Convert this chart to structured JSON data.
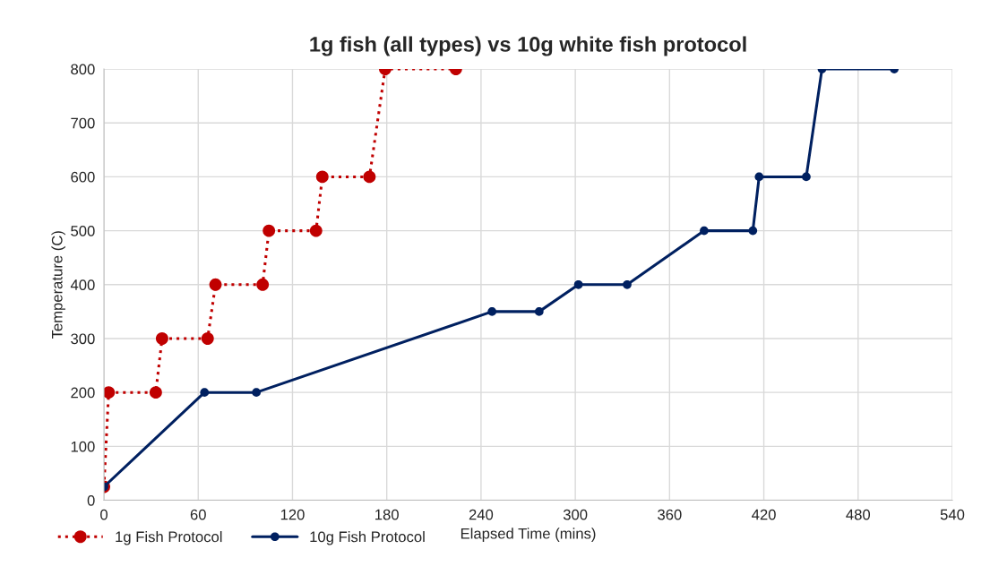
{
  "chart_data": {
    "type": "line",
    "title": "1g fish (all types) vs 10g white fish protocol",
    "xlabel": "Elapsed Time (mins)",
    "ylabel": "Temperature (C)",
    "xlim": [
      0,
      540
    ],
    "xticks": [
      0,
      60,
      120,
      180,
      240,
      300,
      360,
      420,
      480,
      540
    ],
    "ylim": [
      0,
      800
    ],
    "yticks": [
      0,
      100,
      200,
      300,
      400,
      500,
      600,
      700,
      800
    ],
    "grid": true,
    "legend": "bottom left",
    "marker": "circle",
    "series": [
      {
        "name": "1g Fish Protocol",
        "color": "#c00000",
        "line_style": "dotted",
        "x": [
          0,
          3,
          33,
          37,
          66,
          71,
          101,
          105,
          135,
          139,
          169,
          179,
          224
        ],
        "values": [
          25,
          200,
          200,
          300,
          300,
          400,
          400,
          500,
          500,
          600,
          600,
          800,
          800
        ]
      },
      {
        "name": "10g Fish Protocol",
        "color": "#002060",
        "line_style": "solid",
        "x": [
          0,
          64,
          97,
          247,
          277,
          302,
          333,
          382,
          413,
          417,
          447,
          457,
          503
        ],
        "values": [
          25,
          200,
          200,
          350,
          350,
          400,
          400,
          500,
          500,
          600,
          600,
          800,
          800
        ]
      }
    ]
  }
}
